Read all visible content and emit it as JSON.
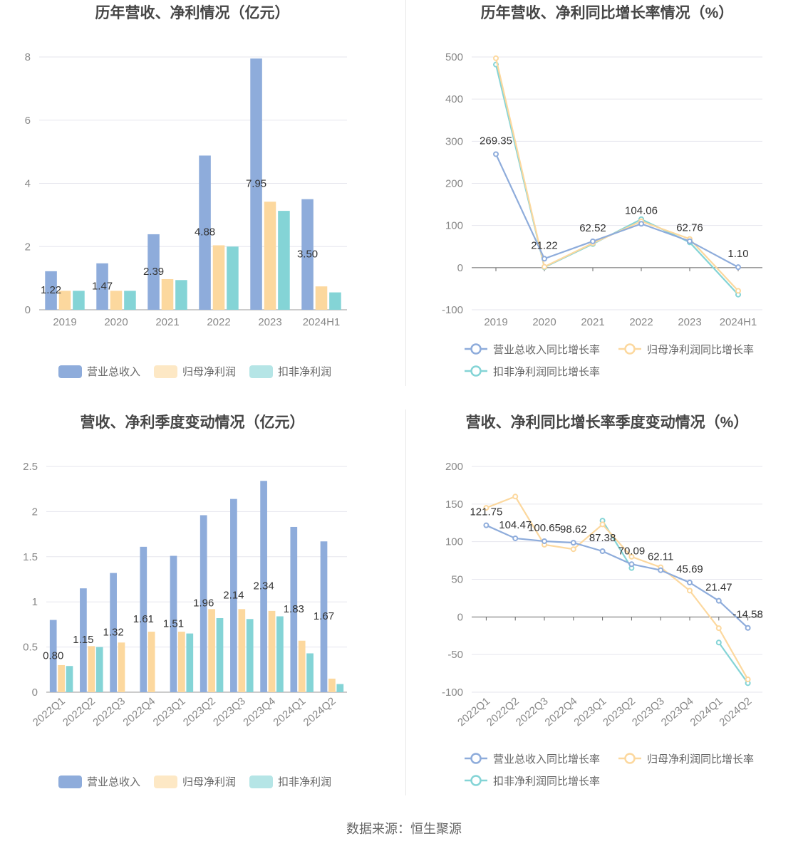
{
  "source_text": "数据来源：恒生聚源",
  "colors": {
    "revenue": "#8eacdb",
    "netprofit": "#fcd89e",
    "deducted": "#84d4d6",
    "grid": "#e6e6ee",
    "axis": "#666666"
  },
  "chart_data": [
    {
      "type": "bar",
      "title": "历年营收、净利情况（亿元）",
      "categories": [
        "2019",
        "2020",
        "2021",
        "2022",
        "2023",
        "2024H1"
      ],
      "ylim": [
        0,
        8
      ],
      "yticks": [
        0,
        2,
        4,
        6,
        8
      ],
      "grid": true,
      "legend_position": "bottom",
      "series": [
        {
          "name": "营业总收入",
          "values": [
            1.22,
            1.47,
            2.39,
            4.88,
            7.95,
            3.5
          ],
          "labels": [
            "1.22",
            "1.47",
            "2.39",
            "4.88",
            "7.95",
            "3.50"
          ]
        },
        {
          "name": "归母净利润",
          "values": [
            0.6,
            0.6,
            0.97,
            2.04,
            3.42,
            0.74
          ]
        },
        {
          "name": "扣非净利润",
          "values": [
            0.6,
            0.6,
            0.94,
            2.0,
            3.13,
            0.55
          ]
        }
      ]
    },
    {
      "type": "line",
      "title": "历年营收、净利同比增长率情况（%）",
      "categories": [
        "2019",
        "2020",
        "2021",
        "2022",
        "2023",
        "2024H1"
      ],
      "ylim": [
        -100,
        500
      ],
      "yticks": [
        -100,
        0,
        100,
        200,
        300,
        400,
        500
      ],
      "grid": true,
      "legend_position": "bottom",
      "series": [
        {
          "name": "营业总收入同比增长率",
          "values": [
            269.35,
            21.22,
            62.52,
            104.06,
            62.76,
            1.1
          ],
          "labels": [
            "269.35",
            "21.22",
            "62.52",
            "104.06",
            "62.76",
            "1.10"
          ]
        },
        {
          "name": "归母净利润同比增长率",
          "values": [
            497,
            2,
            58,
            110,
            68,
            -55
          ]
        },
        {
          "name": "扣非净利润同比增长率",
          "values": [
            482,
            1,
            56,
            115,
            60,
            -64
          ]
        }
      ]
    },
    {
      "type": "bar",
      "title": "营收、净利季度变动情况（亿元）",
      "categories": [
        "2022Q1",
        "2022Q2",
        "2022Q3",
        "2022Q4",
        "2023Q1",
        "2023Q2",
        "2023Q3",
        "2023Q4",
        "2024Q1",
        "2024Q2"
      ],
      "ylim": [
        0,
        2.5
      ],
      "yticks": [
        0,
        0.5,
        1,
        1.5,
        2,
        2.5
      ],
      "grid": true,
      "legend_position": "bottom",
      "series": [
        {
          "name": "营业总收入",
          "values": [
            0.8,
            1.15,
            1.32,
            1.61,
            1.51,
            1.96,
            2.14,
            2.34,
            1.83,
            1.67
          ],
          "labels": [
            "0.80",
            "1.15",
            "1.32",
            "1.61",
            "1.51",
            "1.96",
            "2.14",
            "2.34",
            "1.83",
            "1.67"
          ]
        },
        {
          "name": "归母净利润",
          "values": [
            0.3,
            0.51,
            0.55,
            0.67,
            0.67,
            0.92,
            0.92,
            0.9,
            0.57,
            0.15
          ]
        },
        {
          "name": "扣非净利润",
          "values": [
            0.29,
            0.5,
            null,
            null,
            0.65,
            0.82,
            0.81,
            0.84,
            0.43,
            0.09
          ]
        }
      ]
    },
    {
      "type": "line",
      "title": "营收、净利同比增长率季度变动情况（%）",
      "categories": [
        "2022Q1",
        "2022Q2",
        "2022Q3",
        "2022Q4",
        "2023Q1",
        "2023Q2",
        "2023Q3",
        "2023Q4",
        "2024Q1",
        "2024Q2"
      ],
      "ylim": [
        -100,
        200
      ],
      "yticks": [
        -100,
        -50,
        0,
        50,
        100,
        150,
        200
      ],
      "grid": true,
      "legend_position": "bottom",
      "series": [
        {
          "name": "营业总收入同比增长率",
          "values": [
            121.75,
            104.47,
            100.65,
            98.62,
            87.38,
            70.09,
            62.11,
            45.69,
            21.47,
            -14.58
          ],
          "labels": [
            "121.75",
            "104.47",
            "100.65",
            "98.62",
            "87.38",
            "70.09",
            "62.11",
            "45.69",
            "21.47",
            "-14.58"
          ]
        },
        {
          "name": "归母净利润同比增长率",
          "values": [
            145,
            160,
            96,
            90,
            123,
            80,
            66,
            35,
            -15,
            -83
          ]
        },
        {
          "name": "扣非净利润同比增长率",
          "values": [
            null,
            null,
            null,
            null,
            128,
            65,
            null,
            null,
            -34,
            -88
          ]
        }
      ]
    }
  ]
}
